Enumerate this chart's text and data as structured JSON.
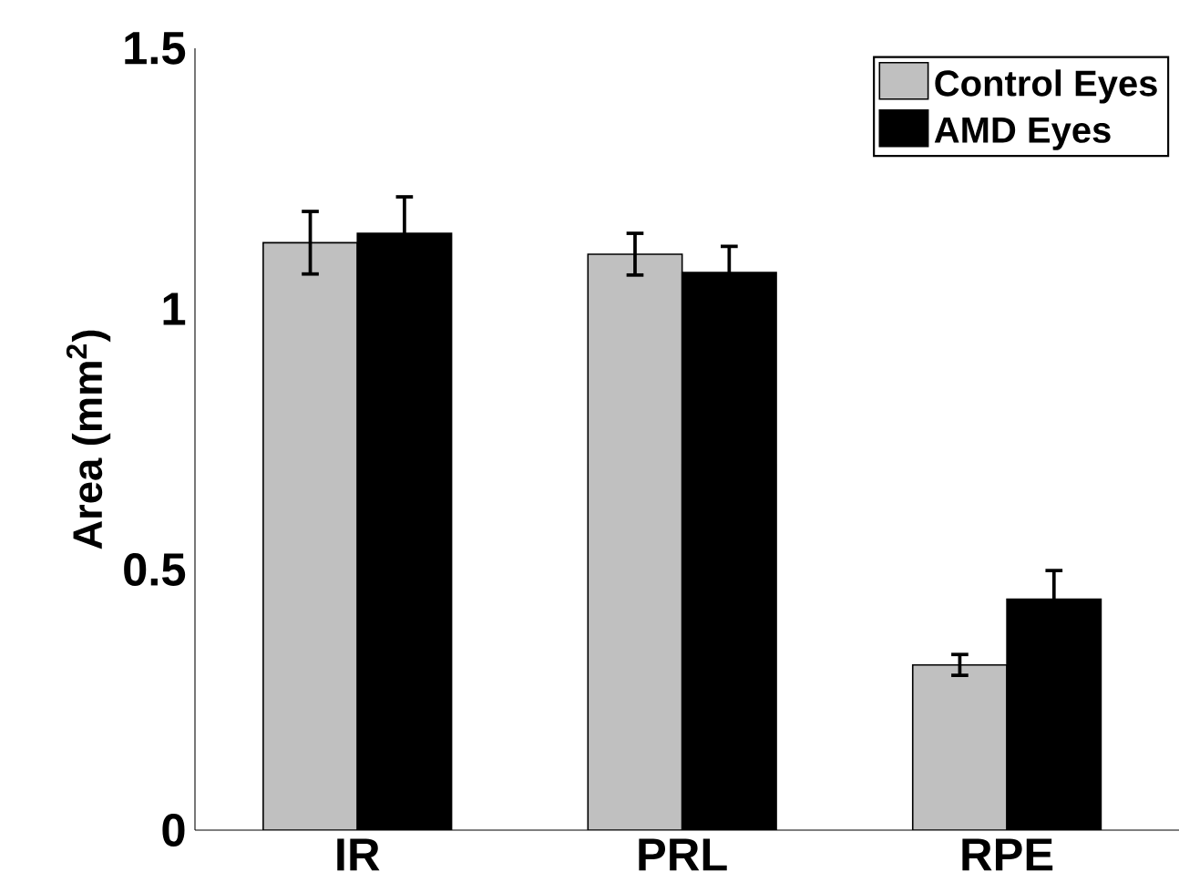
{
  "chart_data": {
    "type": "bar",
    "ylabel": "Area (mm$^{2}$)",
    "categories": [
      "IR",
      "PRL",
      "RPE"
    ],
    "series": [
      {
        "name": "Control Eyes",
        "color": "#c0c0c0",
        "values": [
          1.127,
          1.105,
          0.317
        ],
        "errors": [
          0.06,
          0.04,
          0.02
        ]
      },
      {
        "name": "AMD Eyes",
        "color": "#000000",
        "values": [
          1.145,
          1.07,
          0.443
        ],
        "errors": [
          0.07,
          0.05,
          0.055
        ]
      }
    ],
    "ylim": [
      0,
      1.5
    ],
    "yticks": [
      0,
      0.5,
      1,
      1.5
    ],
    "grid": false,
    "legend": "top right"
  }
}
